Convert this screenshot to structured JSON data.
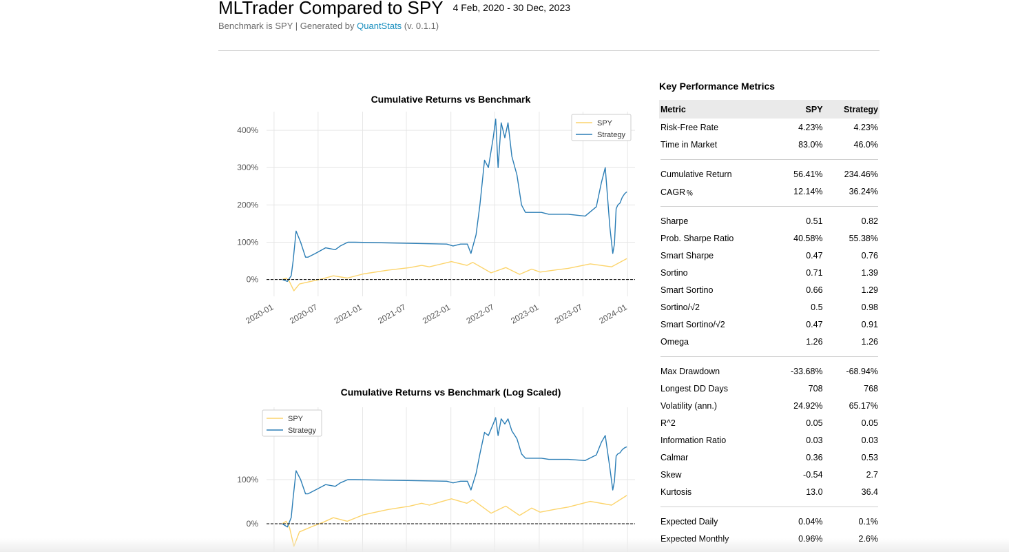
{
  "header": {
    "title": "MLTrader Compared to SPY",
    "date_range": "4 Feb, 2020 - 30 Dec, 2023",
    "subtitle_prefix": "Benchmark is SPY | Generated by ",
    "subtitle_link": "QuantStats",
    "subtitle_suffix": " (v. 0.1.1)"
  },
  "colors": {
    "spy": "#fcd46b",
    "strategy": "#2a7db5",
    "link": "#1a8fbf"
  },
  "chart_data": [
    {
      "type": "line",
      "title": "Cumulative Returns vs Benchmark",
      "xlabel": "",
      "ylabel": "",
      "xlim": [
        "2019-12-01",
        "2024-02-01"
      ],
      "ylim": [
        -45,
        450
      ],
      "yticks": [
        0,
        100,
        200,
        300,
        400
      ],
      "ytick_labels": [
        "0%",
        "100%",
        "200%",
        "300%",
        "400%"
      ],
      "xtick_dates": [
        "2020-01-01",
        "2020-07-01",
        "2021-01-01",
        "2021-07-01",
        "2022-01-01",
        "2022-07-01",
        "2023-01-01",
        "2023-07-01",
        "2024-01-01"
      ],
      "xtick_labels": [
        "2020-01",
        "2020-07",
        "2021-01",
        "2021-07",
        "2022-01",
        "2022-07",
        "2023-01",
        "2023-07",
        "2024-01"
      ],
      "legend": "top-right",
      "grid": true,
      "baseline": 0,
      "series": [
        {
          "name": "SPY",
          "x": [
            "2020-02-04",
            "2020-02-20",
            "2020-03-05",
            "2020-03-23",
            "2020-04-15",
            "2020-06-08",
            "2020-07-20",
            "2020-09-02",
            "2020-10-30",
            "2021-01-04",
            "2021-04-15",
            "2021-07-15",
            "2021-09-02",
            "2021-10-04",
            "2022-01-03",
            "2022-03-08",
            "2022-04-01",
            "2022-06-16",
            "2022-08-16",
            "2022-10-12",
            "2022-12-01",
            "2023-01-05",
            "2023-03-13",
            "2023-05-01",
            "2023-07-31",
            "2023-10-27",
            "2023-12-29"
          ],
          "values": [
            0,
            4,
            -6,
            -30,
            -12,
            -4,
            2,
            10,
            4,
            15,
            25,
            32,
            38,
            34,
            48,
            38,
            46,
            18,
            32,
            14,
            28,
            20,
            26,
            30,
            42,
            34,
            56
          ]
        },
        {
          "name": "Strategy",
          "x": [
            "2020-02-04",
            "2020-02-25",
            "2020-03-12",
            "2020-03-20",
            "2020-04-01",
            "2020-04-20",
            "2020-05-10",
            "2020-05-20",
            "2020-06-20",
            "2020-08-01",
            "2020-09-10",
            "2020-10-01",
            "2020-11-01",
            "2020-12-01",
            "2021-12-15",
            "2022-01-10",
            "2022-02-10",
            "2022-03-10",
            "2022-03-25",
            "2022-04-15",
            "2022-05-01",
            "2022-05-20",
            "2022-06-05",
            "2022-06-25",
            "2022-07-05",
            "2022-07-15",
            "2022-07-28",
            "2022-08-12",
            "2022-08-25",
            "2022-09-10",
            "2022-10-01",
            "2022-10-20",
            "2022-11-05",
            "2022-11-20",
            "2022-12-05",
            "2022-12-20",
            "2023-01-10",
            "2023-02-10",
            "2023-03-10",
            "2023-05-01",
            "2023-07-10",
            "2023-08-25",
            "2023-09-15",
            "2023-10-01",
            "2023-10-20",
            "2023-11-01",
            "2023-11-08",
            "2023-11-15",
            "2023-11-22",
            "2023-12-01",
            "2023-12-10",
            "2023-12-20",
            "2023-12-29"
          ],
          "values": [
            0,
            -5,
            10,
            50,
            130,
            100,
            60,
            60,
            70,
            85,
            80,
            90,
            100,
            100,
            95,
            90,
            95,
            95,
            70,
            120,
            200,
            320,
            300,
            380,
            430,
            300,
            420,
            380,
            420,
            330,
            280,
            200,
            180,
            180,
            180,
            180,
            180,
            175,
            175,
            175,
            170,
            195,
            260,
            300,
            140,
            70,
            95,
            190,
            200,
            205,
            220,
            230,
            235
          ]
        }
      ]
    },
    {
      "type": "line",
      "title": "Cumulative Returns vs Benchmark (Log Scaled)",
      "xlabel": "",
      "ylabel": "",
      "yscale": "log",
      "xlim": [
        "2019-12-01",
        "2024-02-01"
      ],
      "yticks": [
        0,
        100
      ],
      "ytick_labels": [
        "0%",
        "100%"
      ],
      "legend": "top-left",
      "grid": true,
      "baseline": 0,
      "series": [
        {
          "name": "SPY",
          "values_same_as_chart": 0
        },
        {
          "name": "Strategy",
          "values_same_as_chart": 0
        }
      ]
    }
  ],
  "metrics": {
    "title": "Key Performance Metrics",
    "columns": [
      "Metric",
      "SPY",
      "Strategy"
    ],
    "groups": [
      [
        [
          "Risk-Free Rate",
          "4.23%",
          "4.23%"
        ],
        [
          "Time in Market",
          "83.0%",
          "46.0%"
        ]
      ],
      [
        [
          "Cumulative Return",
          "56.41%",
          "234.46%"
        ],
        [
          "CAGR﹪",
          "12.14%",
          "36.24%"
        ]
      ],
      [
        [
          "Sharpe",
          "0.51",
          "0.82"
        ],
        [
          "Prob. Sharpe Ratio",
          "40.58%",
          "55.38%"
        ],
        [
          "Smart Sharpe",
          "0.47",
          "0.76"
        ],
        [
          "Sortino",
          "0.71",
          "1.39"
        ],
        [
          "Smart Sortino",
          "0.66",
          "1.29"
        ],
        [
          "Sortino/√2",
          "0.5",
          "0.98"
        ],
        [
          "Smart Sortino/√2",
          "0.47",
          "0.91"
        ],
        [
          "Omega",
          "1.26",
          "1.26"
        ]
      ],
      [
        [
          "Max Drawdown",
          "-33.68%",
          "-68.94%"
        ],
        [
          "Longest DD Days",
          "708",
          "768"
        ],
        [
          "Volatility (ann.)",
          "24.92%",
          "65.17%"
        ],
        [
          "R^2",
          "0.05",
          "0.05"
        ],
        [
          "Information Ratio",
          "0.03",
          "0.03"
        ],
        [
          "Calmar",
          "0.36",
          "0.53"
        ],
        [
          "Skew",
          "-0.54",
          "2.7"
        ],
        [
          "Kurtosis",
          "13.0",
          "36.4"
        ]
      ],
      [
        [
          "Expected Daily",
          "0.04%",
          "0.1%"
        ],
        [
          "Expected Monthly",
          "0.96%",
          "2.6%"
        ]
      ]
    ]
  }
}
